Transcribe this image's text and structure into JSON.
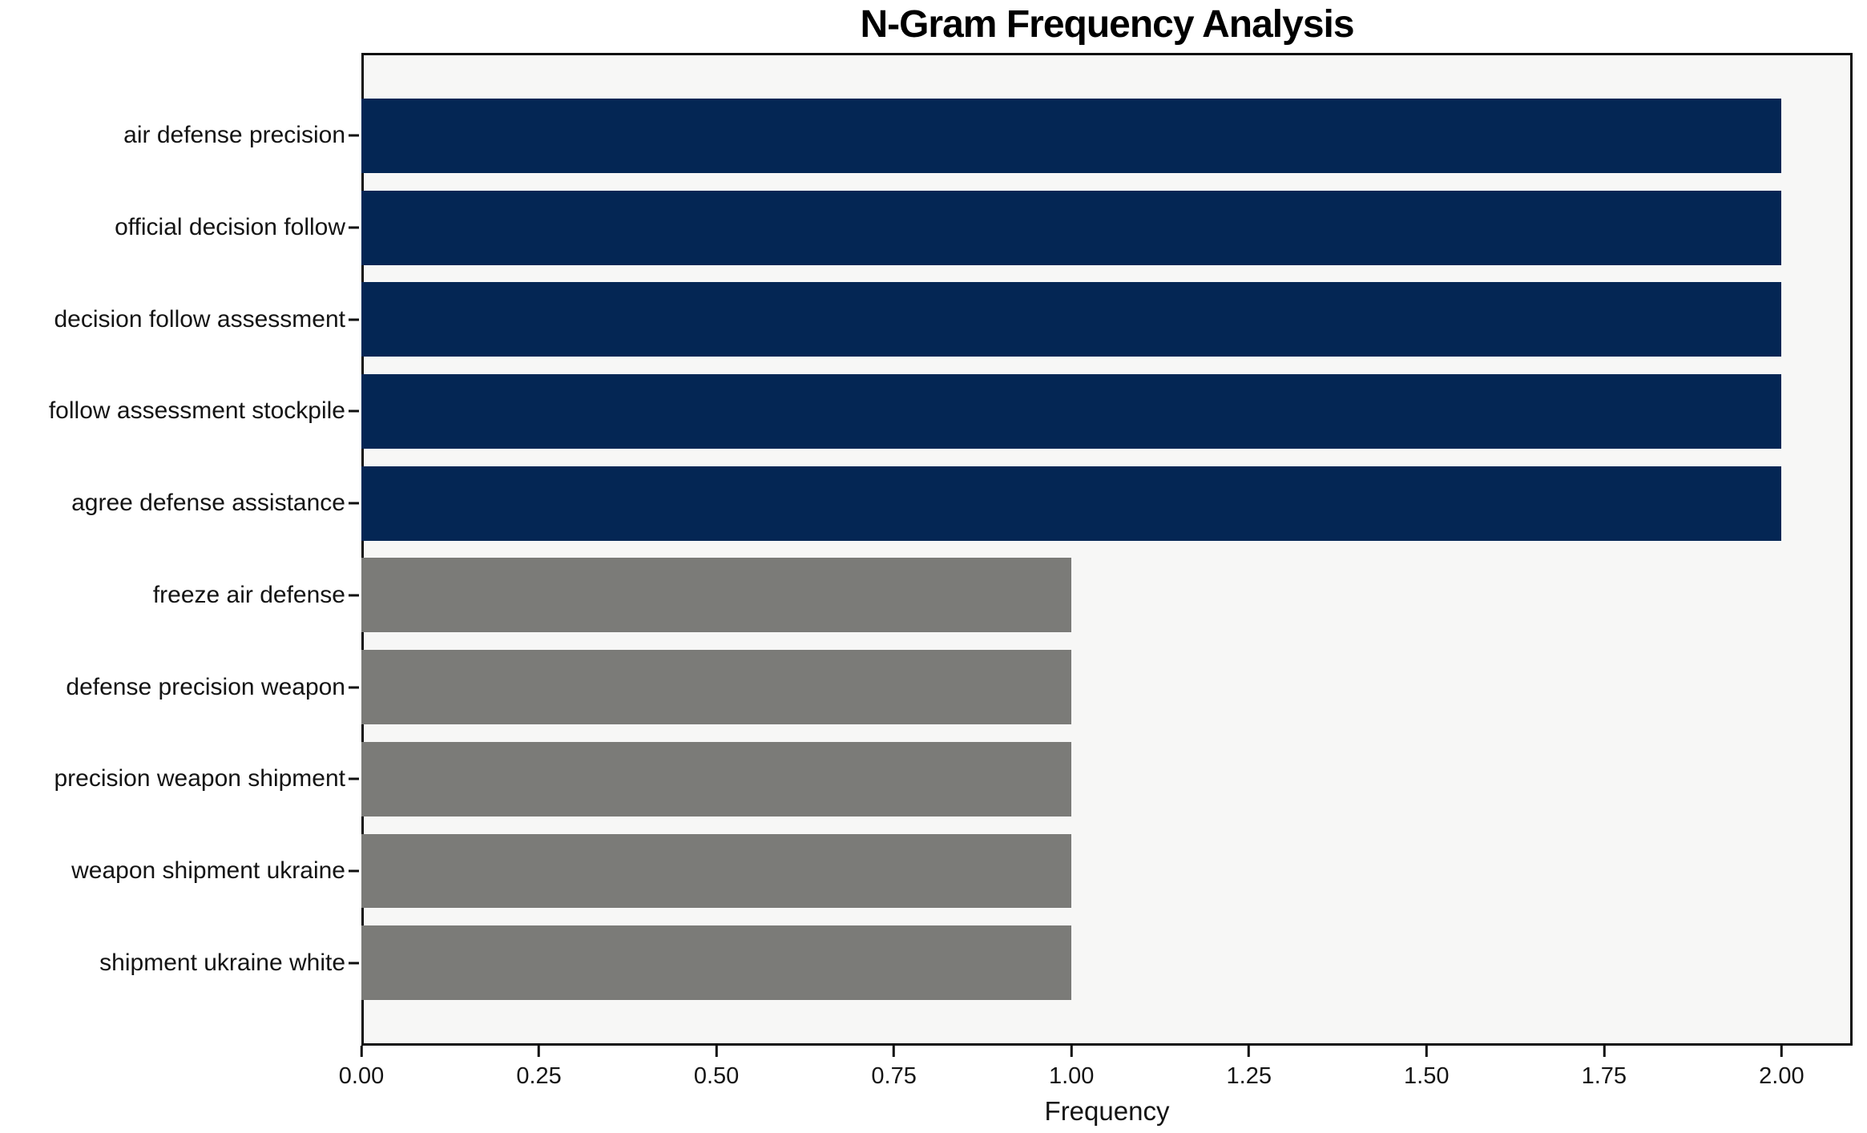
{
  "chart_data": {
    "type": "bar",
    "orientation": "horizontal",
    "title": "N-Gram Frequency Analysis",
    "xlabel": "Frequency",
    "ylabel": "",
    "categories": [
      "air defense precision",
      "official decision follow",
      "decision follow assessment",
      "follow assessment stockpile",
      "agree defense assistance",
      "freeze air defense",
      "defense precision weapon",
      "precision weapon shipment",
      "weapon shipment ukraine",
      "shipment ukraine white"
    ],
    "values": [
      2,
      2,
      2,
      2,
      2,
      1,
      1,
      1,
      1,
      1
    ],
    "bar_colors": [
      "#042654",
      "#042654",
      "#042654",
      "#042654",
      "#042654",
      "#7b7b78",
      "#7b7b78",
      "#7b7b78",
      "#7b7b78",
      "#7b7b78"
    ],
    "xlim": [
      0,
      2.1
    ],
    "xticks": [
      0,
      0.25,
      0.5,
      0.75,
      1.0,
      1.25,
      1.5,
      1.75,
      2.0
    ],
    "xtick_labels": [
      "0.00",
      "0.25",
      "0.50",
      "0.75",
      "1.00",
      "1.25",
      "1.50",
      "1.75",
      "2.00"
    ],
    "grid": false,
    "legend": null,
    "colors": {
      "highlight_bar": "#042654",
      "muted_bar": "#7b7b78",
      "plot_background": "#f7f7f6",
      "figure_background": "#ffffff",
      "spine": "#0e0e0e",
      "text": "#141414"
    }
  }
}
